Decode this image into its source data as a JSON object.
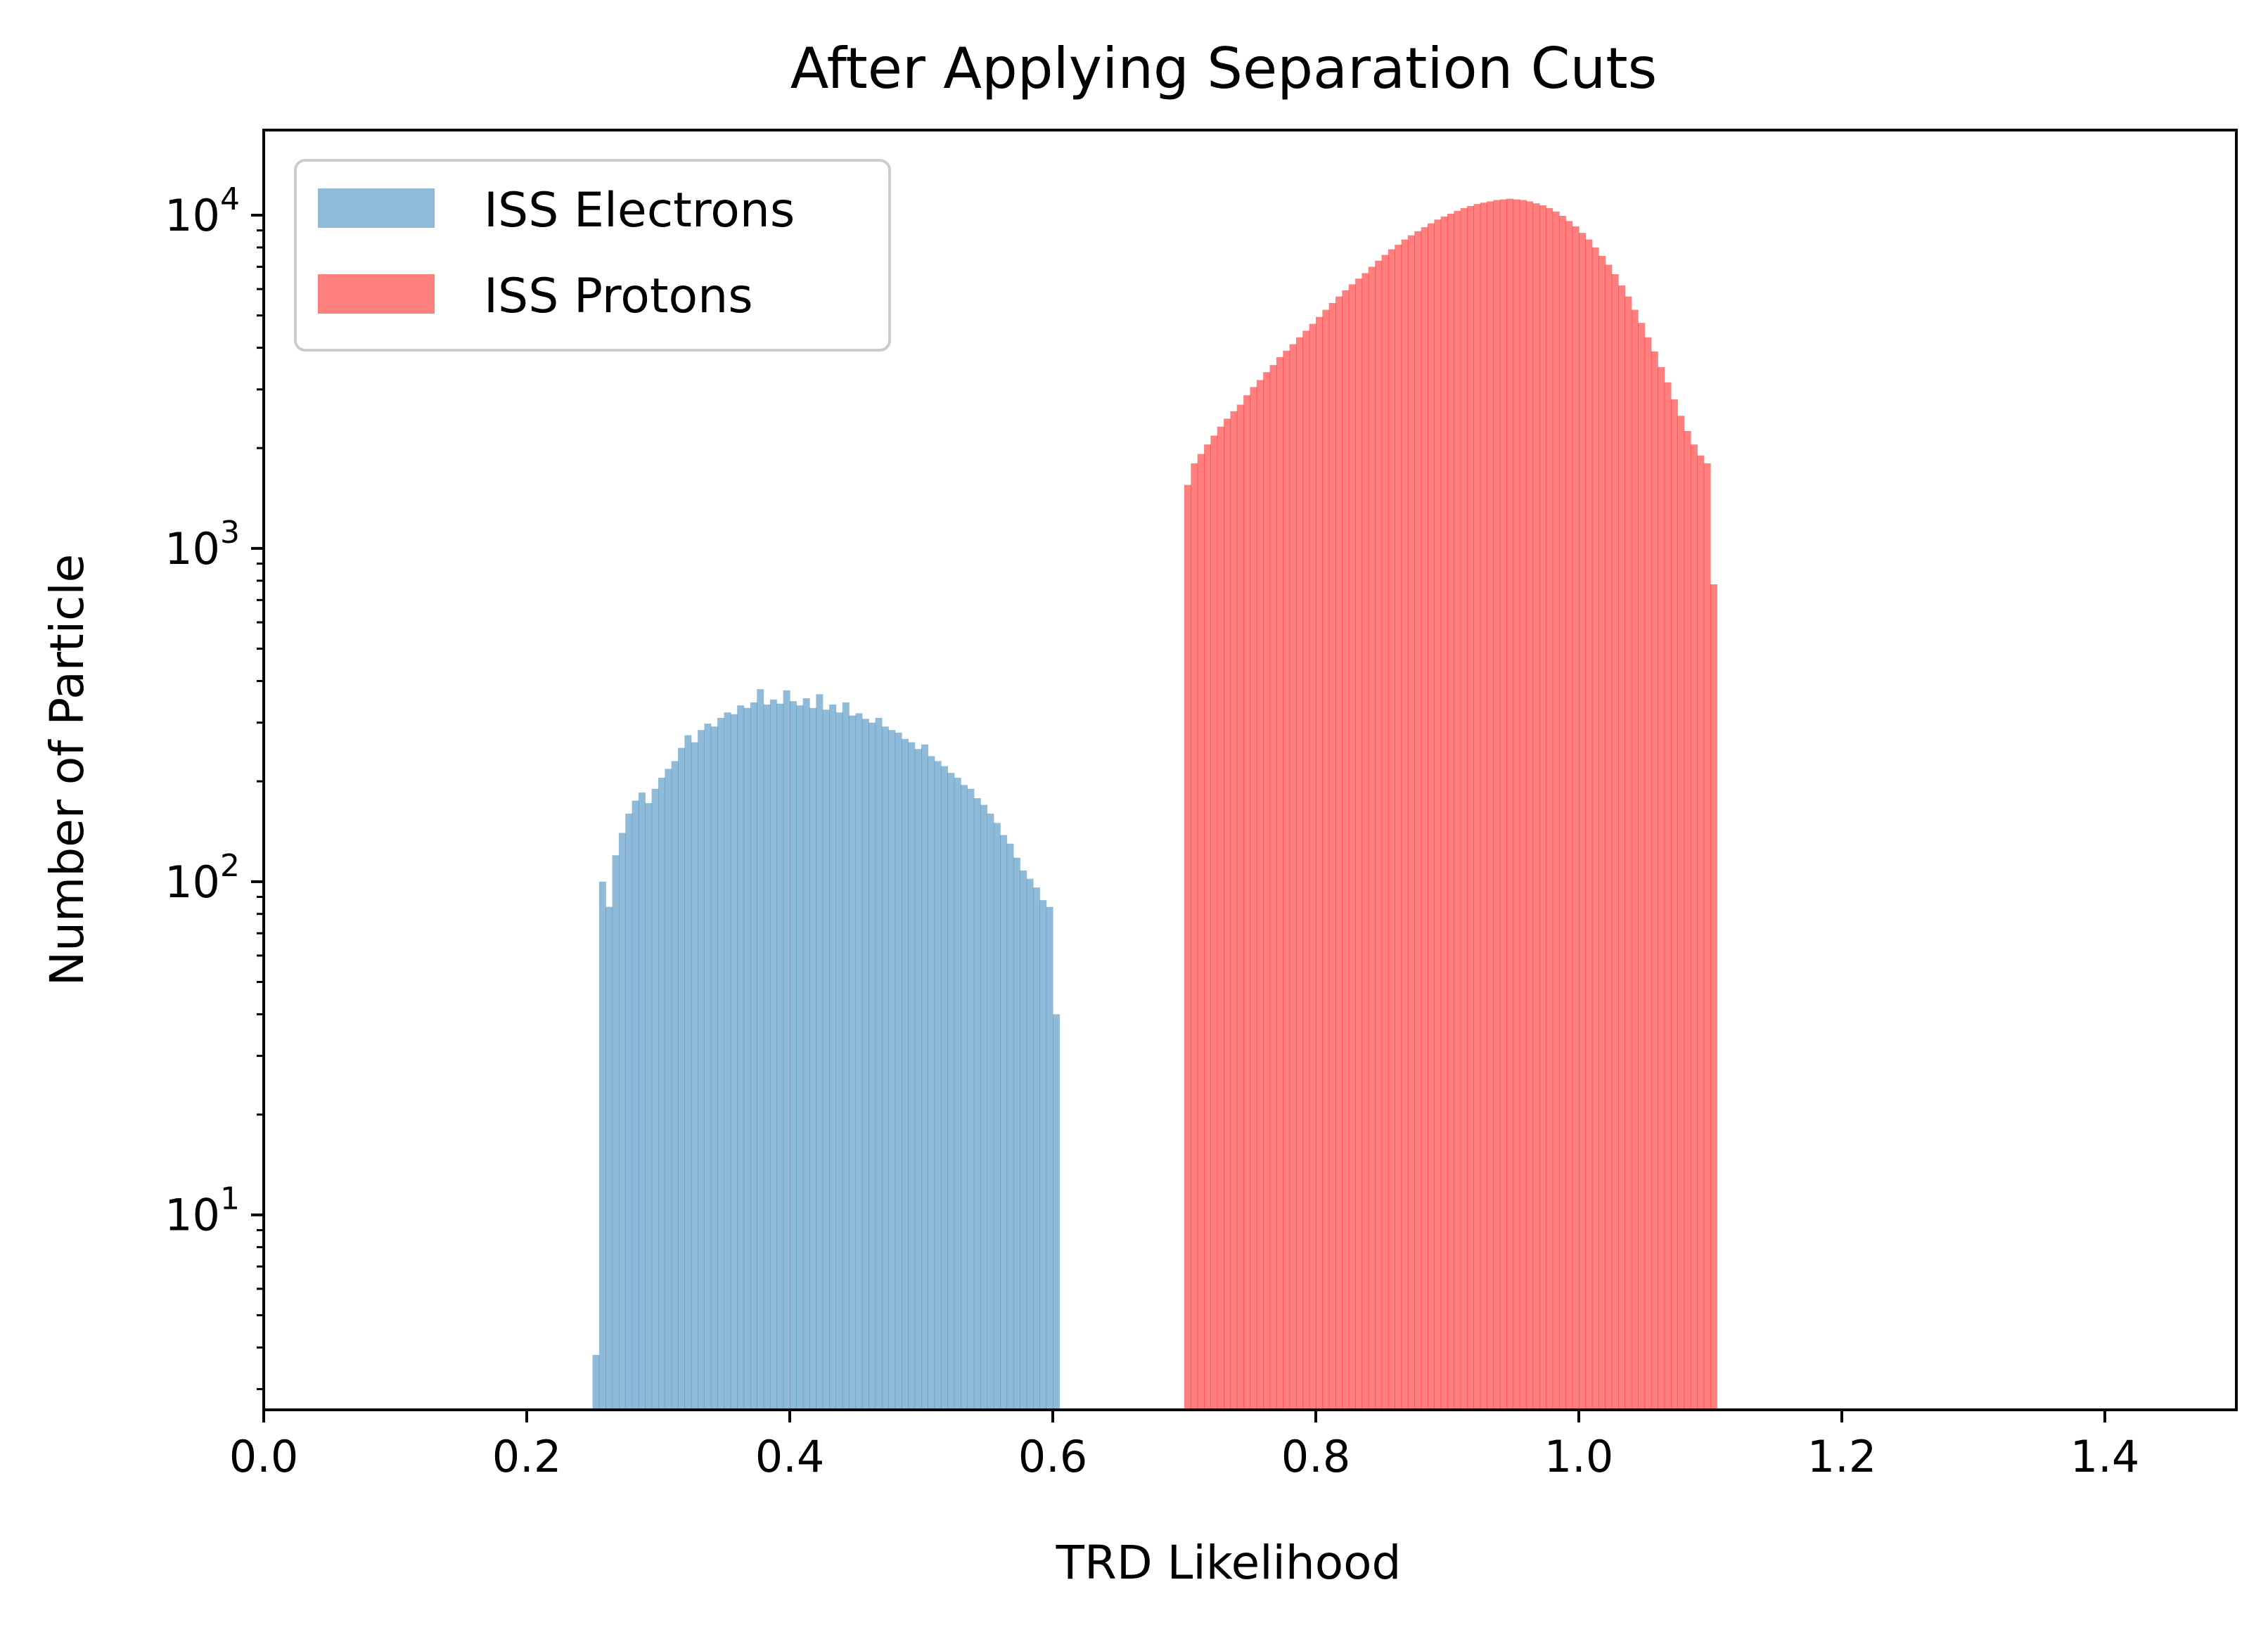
{
  "chart_data": {
    "type": "histogram",
    "title": "After Applying Separation Cuts",
    "xlabel": "TRD Likelihood",
    "ylabel": "Number of Particle",
    "xlim": [
      0.0,
      1.5
    ],
    "ylim": [
      2.6,
      18000
    ],
    "yscale": "log",
    "grid": false,
    "legend_position": "top-left",
    "x_ticks": [
      {
        "value": 0.0,
        "label": "0.0"
      },
      {
        "value": 0.2,
        "label": "0.2"
      },
      {
        "value": 0.4,
        "label": "0.4"
      },
      {
        "value": 0.6,
        "label": "0.6"
      },
      {
        "value": 0.8,
        "label": "0.8"
      },
      {
        "value": 1.0,
        "label": "1.0"
      },
      {
        "value": 1.2,
        "label": "1.2"
      },
      {
        "value": 1.4,
        "label": "1.4"
      }
    ],
    "y_ticks": [
      {
        "value": 10,
        "base": "10",
        "exp": "1"
      },
      {
        "value": 100,
        "base": "10",
        "exp": "2"
      },
      {
        "value": 1000,
        "base": "10",
        "exp": "3"
      },
      {
        "value": 10000,
        "base": "10",
        "exp": "4"
      }
    ],
    "series": [
      {
        "name": "ISS Electrons",
        "color": "#1f77b4",
        "alpha": 0.5,
        "bins": [
          [
            0.25,
            0.255,
            3.8
          ],
          [
            0.255,
            0.26,
            100
          ],
          [
            0.26,
            0.265,
            84
          ],
          [
            0.265,
            0.27,
            120
          ],
          [
            0.27,
            0.275,
            140
          ],
          [
            0.275,
            0.28,
            160
          ],
          [
            0.28,
            0.285,
            175
          ],
          [
            0.285,
            0.29,
            185
          ],
          [
            0.29,
            0.295,
            172
          ],
          [
            0.295,
            0.3,
            190
          ],
          [
            0.3,
            0.305,
            205
          ],
          [
            0.305,
            0.31,
            218
          ],
          [
            0.31,
            0.315,
            230
          ],
          [
            0.315,
            0.32,
            252
          ],
          [
            0.32,
            0.325,
            275
          ],
          [
            0.325,
            0.33,
            262
          ],
          [
            0.33,
            0.335,
            285
          ],
          [
            0.335,
            0.34,
            298
          ],
          [
            0.34,
            0.345,
            292
          ],
          [
            0.345,
            0.35,
            310
          ],
          [
            0.35,
            0.355,
            322
          ],
          [
            0.355,
            0.36,
            318
          ],
          [
            0.36,
            0.365,
            338
          ],
          [
            0.365,
            0.37,
            332
          ],
          [
            0.37,
            0.375,
            345
          ],
          [
            0.375,
            0.38,
            378
          ],
          [
            0.38,
            0.385,
            340
          ],
          [
            0.385,
            0.39,
            352
          ],
          [
            0.39,
            0.395,
            342
          ],
          [
            0.395,
            0.4,
            375
          ],
          [
            0.4,
            0.405,
            348
          ],
          [
            0.405,
            0.41,
            338
          ],
          [
            0.41,
            0.415,
            355
          ],
          [
            0.415,
            0.42,
            332
          ],
          [
            0.42,
            0.425,
            365
          ],
          [
            0.425,
            0.43,
            328
          ],
          [
            0.43,
            0.435,
            340
          ],
          [
            0.435,
            0.44,
            322
          ],
          [
            0.44,
            0.445,
            345
          ],
          [
            0.445,
            0.45,
            315
          ],
          [
            0.45,
            0.455,
            320
          ],
          [
            0.455,
            0.46,
            308
          ],
          [
            0.46,
            0.465,
            300
          ],
          [
            0.465,
            0.47,
            310
          ],
          [
            0.47,
            0.475,
            292
          ],
          [
            0.475,
            0.48,
            285
          ],
          [
            0.48,
            0.485,
            280
          ],
          [
            0.485,
            0.49,
            268
          ],
          [
            0.49,
            0.495,
            262
          ],
          [
            0.495,
            0.5,
            250
          ],
          [
            0.5,
            0.505,
            258
          ],
          [
            0.505,
            0.51,
            238
          ],
          [
            0.51,
            0.515,
            230
          ],
          [
            0.515,
            0.52,
            222
          ],
          [
            0.52,
            0.525,
            212
          ],
          [
            0.525,
            0.53,
            205
          ],
          [
            0.53,
            0.535,
            195
          ],
          [
            0.535,
            0.54,
            190
          ],
          [
            0.54,
            0.545,
            178
          ],
          [
            0.545,
            0.55,
            170
          ],
          [
            0.55,
            0.555,
            160
          ],
          [
            0.555,
            0.56,
            150
          ],
          [
            0.56,
            0.565,
            138
          ],
          [
            0.565,
            0.57,
            130
          ],
          [
            0.57,
            0.575,
            118
          ],
          [
            0.575,
            0.58,
            108
          ],
          [
            0.58,
            0.585,
            102
          ],
          [
            0.585,
            0.59,
            96
          ],
          [
            0.59,
            0.595,
            88
          ],
          [
            0.595,
            0.6,
            84
          ],
          [
            0.6,
            0.605,
            40
          ]
        ]
      },
      {
        "name": "ISS Protons",
        "color": "#ff0000",
        "alpha": 0.5,
        "bins": [
          [
            0.7,
            0.705,
            1550
          ],
          [
            0.705,
            0.71,
            1800
          ],
          [
            0.71,
            0.715,
            1920
          ],
          [
            0.715,
            0.72,
            2050
          ],
          [
            0.72,
            0.725,
            2180
          ],
          [
            0.725,
            0.73,
            2320
          ],
          [
            0.73,
            0.735,
            2450
          ],
          [
            0.735,
            0.74,
            2580
          ],
          [
            0.74,
            0.745,
            2700
          ],
          [
            0.745,
            0.75,
            2880
          ],
          [
            0.75,
            0.755,
            3050
          ],
          [
            0.755,
            0.76,
            3200
          ],
          [
            0.76,
            0.765,
            3380
          ],
          [
            0.765,
            0.77,
            3550
          ],
          [
            0.77,
            0.775,
            3750
          ],
          [
            0.775,
            0.78,
            3920
          ],
          [
            0.78,
            0.785,
            4100
          ],
          [
            0.785,
            0.79,
            4300
          ],
          [
            0.79,
            0.795,
            4500
          ],
          [
            0.795,
            0.8,
            4720
          ],
          [
            0.8,
            0.805,
            4950
          ],
          [
            0.805,
            0.81,
            5200
          ],
          [
            0.81,
            0.815,
            5450
          ],
          [
            0.815,
            0.82,
            5700
          ],
          [
            0.82,
            0.825,
            5950
          ],
          [
            0.825,
            0.83,
            6200
          ],
          [
            0.83,
            0.835,
            6450
          ],
          [
            0.835,
            0.84,
            6700
          ],
          [
            0.84,
            0.845,
            7000
          ],
          [
            0.845,
            0.85,
            7300
          ],
          [
            0.85,
            0.855,
            7600
          ],
          [
            0.855,
            0.86,
            7900
          ],
          [
            0.86,
            0.865,
            8150
          ],
          [
            0.865,
            0.87,
            8450
          ],
          [
            0.87,
            0.875,
            8700
          ],
          [
            0.875,
            0.88,
            8950
          ],
          [
            0.88,
            0.885,
            9200
          ],
          [
            0.885,
            0.89,
            9450
          ],
          [
            0.89,
            0.895,
            9700
          ],
          [
            0.895,
            0.9,
            9900
          ],
          [
            0.9,
            0.905,
            10100
          ],
          [
            0.905,
            0.91,
            10300
          ],
          [
            0.91,
            0.915,
            10500
          ],
          [
            0.915,
            0.92,
            10650
          ],
          [
            0.92,
            0.925,
            10800
          ],
          [
            0.925,
            0.93,
            10900
          ],
          [
            0.93,
            0.935,
            11000
          ],
          [
            0.935,
            0.94,
            11100
          ],
          [
            0.94,
            0.945,
            11150
          ],
          [
            0.945,
            0.95,
            11200
          ],
          [
            0.95,
            0.955,
            11150
          ],
          [
            0.955,
            0.96,
            11100
          ],
          [
            0.96,
            0.965,
            11000
          ],
          [
            0.965,
            0.97,
            10850
          ],
          [
            0.97,
            0.975,
            10700
          ],
          [
            0.975,
            0.98,
            10500
          ],
          [
            0.98,
            0.985,
            10250
          ],
          [
            0.985,
            0.99,
            9950
          ],
          [
            0.99,
            0.995,
            9600
          ],
          [
            0.995,
            1.0,
            9250
          ],
          [
            1.0,
            1.005,
            8850
          ],
          [
            1.005,
            1.01,
            8450
          ],
          [
            1.01,
            1.015,
            8000
          ],
          [
            1.015,
            1.02,
            7550
          ],
          [
            1.02,
            1.025,
            7100
          ],
          [
            1.025,
            1.03,
            6650
          ],
          [
            1.03,
            1.035,
            6150
          ],
          [
            1.035,
            1.04,
            5700
          ],
          [
            1.04,
            1.045,
            5200
          ],
          [
            1.045,
            1.05,
            4750
          ],
          [
            1.05,
            1.055,
            4300
          ],
          [
            1.055,
            1.06,
            3900
          ],
          [
            1.06,
            1.065,
            3500
          ],
          [
            1.065,
            1.07,
            3150
          ],
          [
            1.07,
            1.075,
            2800
          ],
          [
            1.075,
            1.08,
            2500
          ],
          [
            1.08,
            1.085,
            2250
          ],
          [
            1.085,
            1.09,
            2050
          ],
          [
            1.09,
            1.095,
            1900
          ],
          [
            1.095,
            1.1,
            1800
          ],
          [
            1.1,
            1.105,
            780
          ]
        ]
      }
    ]
  }
}
